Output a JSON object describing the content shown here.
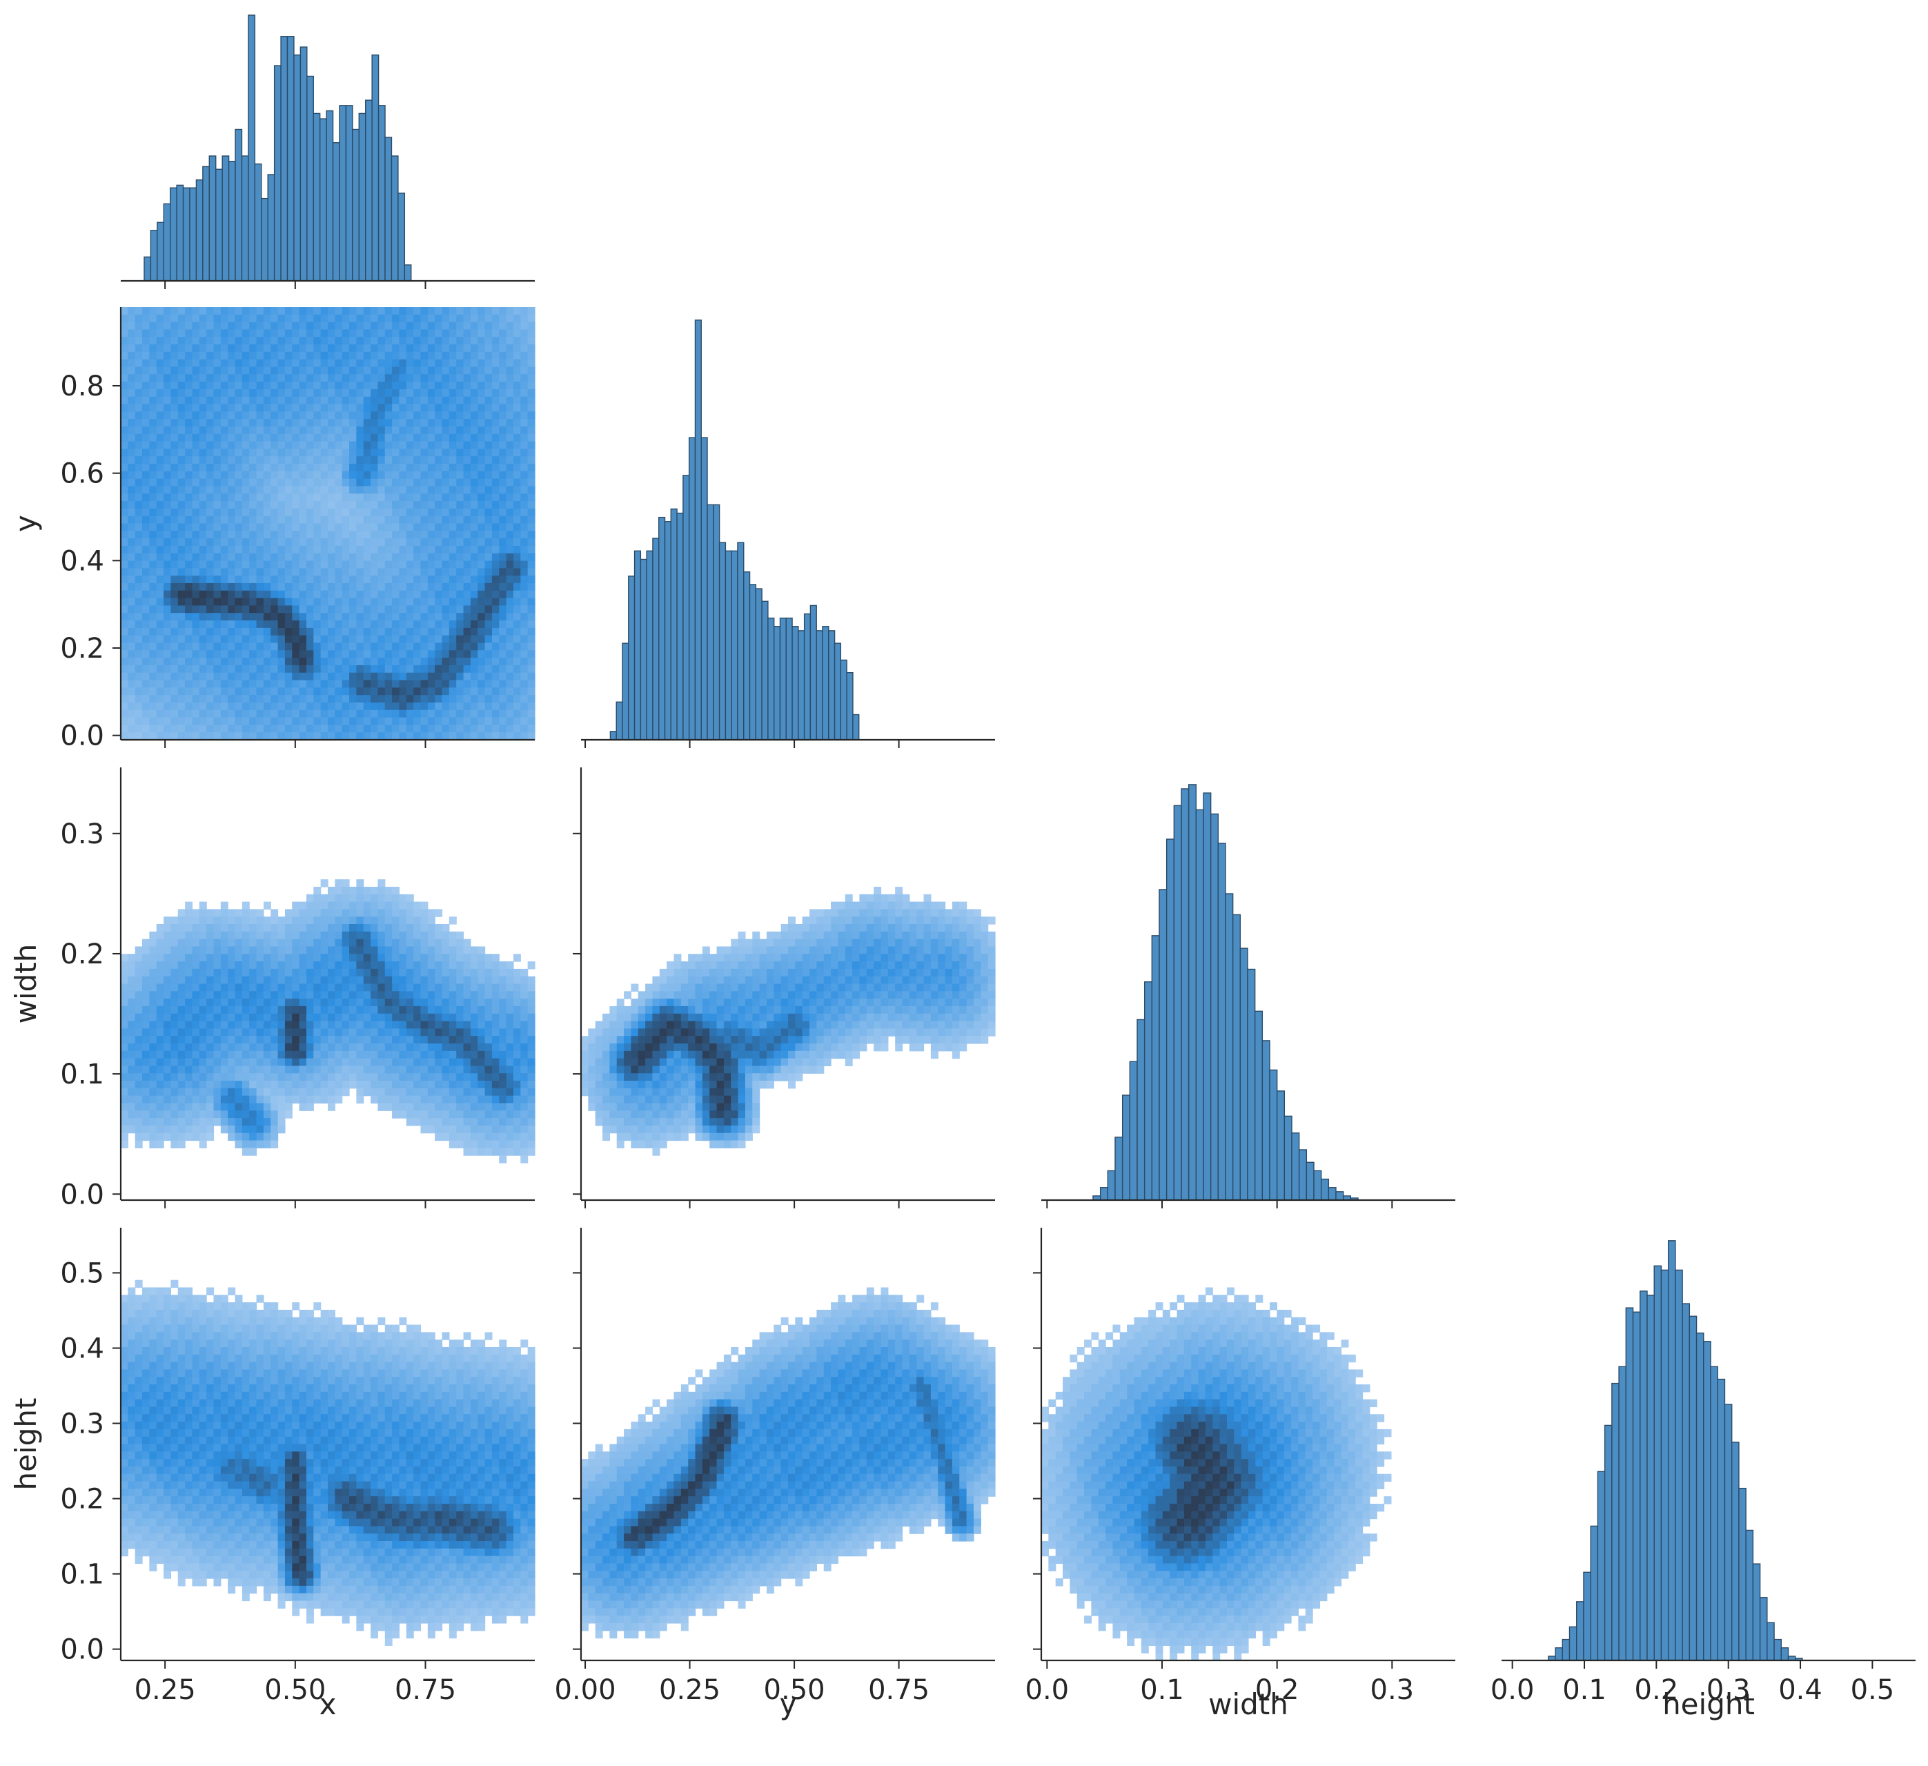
{
  "chart_data": {
    "type": "pairplot",
    "variables": [
      "x",
      "y",
      "width",
      "height"
    ],
    "grid": false,
    "colors": {
      "hist_fill": "#4c8ec3",
      "hist_edge": "#2b4a66",
      "density_low": "#c7dcf5",
      "density_mid": "#2f8fe0",
      "density_high": "#2d3e57"
    },
    "axes": {
      "x": {
        "label": "x",
        "range": [
          0.165,
          0.96
        ],
        "ticks": [
          0.25,
          0.5,
          0.75
        ],
        "tick_labels": [
          "0.25",
          "0.50",
          "0.75"
        ]
      },
      "y": {
        "label": "y",
        "range": [
          -0.01,
          0.98
        ],
        "ticks": [
          0.0,
          0.2,
          0.4,
          0.6,
          0.8
        ],
        "tick_labels": [
          "0.0",
          "0.2",
          "0.4",
          "0.6",
          "0.8"
        ]
      },
      "y_diag": {
        "label": "y",
        "range": [
          -0.01,
          0.98
        ],
        "ticks": [
          0.0,
          0.25,
          0.5,
          0.75
        ],
        "tick_labels": [
          "0.00",
          "0.25",
          "0.50",
          "0.75"
        ]
      },
      "width": {
        "label": "width",
        "range": [
          -0.005,
          0.355
        ],
        "ticks": [
          0.0,
          0.1,
          0.2,
          0.3
        ],
        "tick_labels": [
          "0.0",
          "0.1",
          "0.2",
          "0.3"
        ]
      },
      "height": {
        "label": "height",
        "range": [
          -0.015,
          0.56
        ],
        "ticks": [
          0.0,
          0.1,
          0.2,
          0.3,
          0.4,
          0.5
        ],
        "tick_labels": [
          "0.0",
          "0.1",
          "0.2",
          "0.3",
          "0.4",
          "0.5"
        ]
      }
    },
    "histograms": {
      "x": {
        "bin_start": 0.21,
        "bin_width": 0.0125,
        "counts": [
          0.09,
          0.19,
          0.22,
          0.29,
          0.35,
          0.36,
          0.35,
          0.35,
          0.38,
          0.43,
          0.47,
          0.42,
          0.47,
          0.45,
          0.57,
          0.47,
          1.0,
          0.44,
          0.31,
          0.4,
          0.81,
          0.92,
          0.92,
          0.85,
          0.88,
          0.77,
          0.63,
          0.61,
          0.64,
          0.52,
          0.66,
          0.66,
          0.57,
          0.63,
          0.68,
          0.85,
          0.66,
          0.54,
          0.47,
          0.33,
          0.06
        ]
      },
      "y": {
        "bin_start": 0.06,
        "bin_width": 0.0145,
        "counts": [
          0.02,
          0.09,
          0.23,
          0.39,
          0.45,
          0.43,
          0.45,
          0.48,
          0.53,
          0.52,
          0.55,
          0.54,
          0.63,
          0.72,
          1.0,
          0.72,
          0.56,
          0.56,
          0.47,
          0.45,
          0.45,
          0.47,
          0.4,
          0.37,
          0.36,
          0.33,
          0.29,
          0.27,
          0.29,
          0.29,
          0.27,
          0.26,
          0.3,
          0.32,
          0.26,
          0.27,
          0.26,
          0.23,
          0.19,
          0.16,
          0.06
        ]
      },
      "width": {
        "bin_start": 0.04,
        "bin_width": 0.0064,
        "counts": [
          0.01,
          0.03,
          0.07,
          0.15,
          0.25,
          0.33,
          0.43,
          0.52,
          0.63,
          0.74,
          0.86,
          0.94,
          0.98,
          0.99,
          0.93,
          0.97,
          0.92,
          0.85,
          0.73,
          0.68,
          0.6,
          0.55,
          0.45,
          0.38,
          0.31,
          0.26,
          0.2,
          0.16,
          0.12,
          0.09,
          0.07,
          0.05,
          0.03,
          0.02,
          0.01,
          0.005
        ]
      },
      "height": {
        "bin_start": 0.05,
        "bin_width": 0.0098,
        "counts": [
          0.01,
          0.03,
          0.05,
          0.08,
          0.14,
          0.21,
          0.32,
          0.45,
          0.56,
          0.66,
          0.7,
          0.84,
          0.83,
          0.88,
          0.87,
          0.94,
          0.93,
          1.0,
          0.93,
          0.85,
          0.82,
          0.78,
          0.76,
          0.7,
          0.67,
          0.61,
          0.52,
          0.41,
          0.31,
          0.23,
          0.15,
          0.09,
          0.05,
          0.03,
          0.01,
          0.005
        ]
      }
    },
    "density_panels": [
      {
        "row": "y",
        "col": "x",
        "features": [
          {
            "points": [
              [
                0.225,
                0.52
              ],
              [
                0.3,
                0.8
              ],
              [
                0.5,
                0.88
              ],
              [
                0.7,
                0.9
              ],
              [
                0.85,
                0.65
              ],
              [
                0.9,
                0.4
              ],
              [
                0.8,
                0.2
              ],
              [
                0.65,
                0.1
              ],
              [
                0.45,
                0.22
              ],
              [
                0.3,
                0.33
              ]
            ],
            "spread": 0.12,
            "weight": 0.45
          },
          {
            "points": [
              [
                0.28,
                0.32
              ],
              [
                0.35,
                0.31
              ],
              [
                0.42,
                0.3
              ],
              [
                0.47,
                0.27
              ],
              [
                0.5,
                0.22
              ],
              [
                0.51,
                0.17
              ]
            ],
            "spread": 0.018,
            "weight": 1.0
          },
          {
            "points": [
              [
                0.63,
                0.12
              ],
              [
                0.7,
                0.09
              ],
              [
                0.77,
                0.12
              ],
              [
                0.83,
                0.22
              ],
              [
                0.88,
                0.32
              ],
              [
                0.91,
                0.38
              ]
            ],
            "spread": 0.02,
            "weight": 0.85
          },
          {
            "points": [
              [
                0.63,
                0.6
              ],
              [
                0.66,
                0.75
              ],
              [
                0.7,
                0.84
              ]
            ],
            "spread": 0.02,
            "weight": 0.6
          }
        ]
      },
      {
        "row": "width",
        "col": "x",
        "features": [
          {
            "points": [
              [
                0.25,
                0.12
              ],
              [
                0.35,
                0.16
              ],
              [
                0.5,
                0.15
              ],
              [
                0.62,
                0.18
              ],
              [
                0.75,
                0.14
              ],
              [
                0.9,
                0.11
              ]
            ],
            "spread": 0.05,
            "weight": 0.5
          },
          {
            "points": [
              [
                0.5,
                0.15
              ],
              [
                0.5,
                0.12
              ]
            ],
            "spread": 0.012,
            "weight": 1.0
          },
          {
            "points": [
              [
                0.62,
                0.21
              ],
              [
                0.68,
                0.16
              ],
              [
                0.75,
                0.14
              ],
              [
                0.82,
                0.13
              ],
              [
                0.9,
                0.09
              ]
            ],
            "spread": 0.015,
            "weight": 0.8
          },
          {
            "points": [
              [
                0.38,
                0.08
              ],
              [
                0.42,
                0.06
              ]
            ],
            "spread": 0.015,
            "weight": 0.6
          }
        ]
      },
      {
        "row": "width",
        "col": "y",
        "features": [
          {
            "points": [
              [
                0.15,
                0.1
              ],
              [
                0.3,
                0.14
              ],
              [
                0.5,
                0.16
              ],
              [
                0.7,
                0.19
              ],
              [
                0.85,
                0.18
              ]
            ],
            "spread": 0.05,
            "weight": 0.45
          },
          {
            "points": [
              [
                0.12,
                0.11
              ],
              [
                0.2,
                0.14
              ],
              [
                0.27,
                0.13
              ],
              [
                0.32,
                0.11
              ],
              [
                0.33,
                0.07
              ]
            ],
            "spread": 0.02,
            "weight": 1.0
          },
          {
            "points": [
              [
                0.35,
                0.13
              ],
              [
                0.42,
                0.12
              ],
              [
                0.5,
                0.14
              ]
            ],
            "spread": 0.02,
            "weight": 0.7
          }
        ]
      },
      {
        "row": "height",
        "col": "x",
        "features": [
          {
            "points": [
              [
                0.25,
                0.3
              ],
              [
                0.4,
                0.26
              ],
              [
                0.55,
                0.24
              ],
              [
                0.7,
                0.2
              ],
              [
                0.9,
                0.22
              ]
            ],
            "spread": 0.07,
            "weight": 0.5
          },
          {
            "points": [
              [
                0.5,
                0.25
              ],
              [
                0.5,
                0.18
              ],
              [
                0.51,
                0.1
              ]
            ],
            "spread": 0.012,
            "weight": 0.95
          },
          {
            "points": [
              [
                0.6,
                0.2
              ],
              [
                0.66,
                0.18
              ],
              [
                0.72,
                0.17
              ],
              [
                0.8,
                0.17
              ],
              [
                0.88,
                0.16
              ]
            ],
            "spread": 0.02,
            "weight": 0.85
          },
          {
            "points": [
              [
                0.38,
                0.24
              ],
              [
                0.44,
                0.22
              ]
            ],
            "spread": 0.02,
            "weight": 0.7
          }
        ]
      },
      {
        "row": "height",
        "col": "y",
        "features": [
          {
            "points": [
              [
                0.1,
                0.14
              ],
              [
                0.3,
                0.22
              ],
              [
                0.5,
                0.3
              ],
              [
                0.7,
                0.35
              ],
              [
                0.85,
                0.3
              ]
            ],
            "spread": 0.06,
            "weight": 0.5
          },
          {
            "points": [
              [
                0.12,
                0.15
              ],
              [
                0.2,
                0.18
              ],
              [
                0.27,
                0.22
              ],
              [
                0.32,
                0.28
              ],
              [
                0.33,
                0.3
              ]
            ],
            "spread": 0.018,
            "weight": 1.0
          },
          {
            "points": [
              [
                0.8,
                0.35
              ],
              [
                0.86,
                0.25
              ],
              [
                0.9,
                0.17
              ]
            ],
            "spread": 0.012,
            "weight": 0.7
          }
        ]
      },
      {
        "row": "height",
        "col": "width",
        "features": [
          {
            "points": [
              [
                0.13,
                0.22
              ],
              [
                0.15,
                0.24
              ]
            ],
            "spread": 0.06,
            "weight": 0.6
          },
          {
            "points": [
              [
                0.12,
                0.17
              ],
              [
                0.15,
                0.22
              ],
              [
                0.13,
                0.27
              ]
            ],
            "spread": 0.025,
            "weight": 1.0
          }
        ]
      }
    ]
  }
}
